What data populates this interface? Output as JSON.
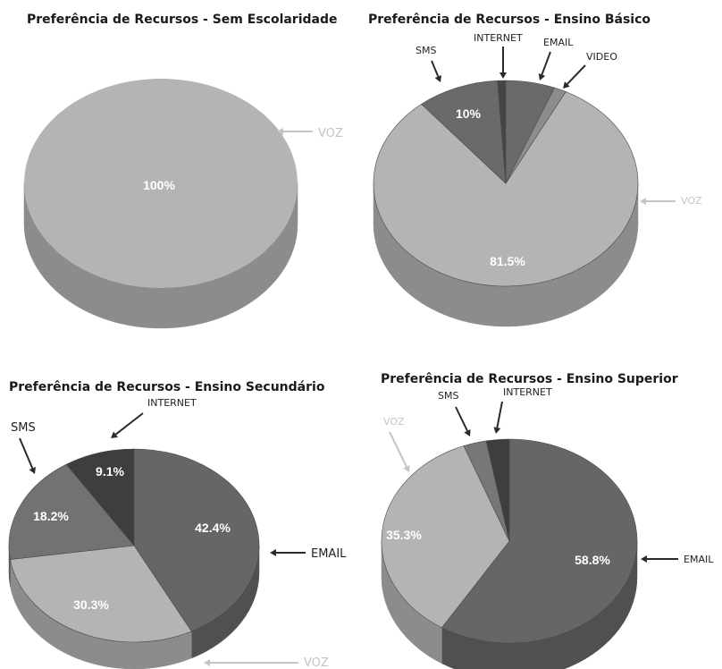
{
  "chart_data": [
    {
      "type": "pie",
      "title": "Preferência de Recursos - Sem Escolaridade",
      "categories": [
        "VOZ"
      ],
      "values": [
        100
      ],
      "value_labels": [
        "100%"
      ],
      "colors": [
        "#b4b4b4"
      ]
    },
    {
      "type": "pie",
      "title": "Preferência de Recursos - Ensino Básico",
      "categories": [
        "VOZ",
        "SMS",
        "INTERNET",
        "EMAIL",
        "VIDEO"
      ],
      "values": [
        81.5,
        10,
        1,
        6,
        1.5
      ],
      "value_labels": [
        "81.5%",
        "10%",
        "",
        "",
        ""
      ],
      "colors": [
        "#b4b4b4",
        "#6a6a6a",
        "#454545",
        "#6a6a6a",
        "#8c8c8c"
      ]
    },
    {
      "type": "pie",
      "title": "Preferência de Recursos - Ensino Secundário",
      "categories": [
        "EMAIL",
        "VOZ",
        "SMS",
        "INTERNET"
      ],
      "values": [
        42.4,
        30.3,
        18.2,
        9.1
      ],
      "value_labels": [
        "42.4%",
        "30.3%",
        "18.2%",
        "9.1%"
      ],
      "colors": [
        "#666666",
        "#b4b4b4",
        "#727272",
        "#3e3e3e"
      ]
    },
    {
      "type": "pie",
      "title": "Preferência de Recursos - Ensino Superior",
      "categories": [
        "EMAIL",
        "VOZ",
        "SMS",
        "INTERNET"
      ],
      "values": [
        58.8,
        35.3,
        2.9,
        2.9
      ],
      "value_labels": [
        "58.8%",
        "35.3%",
        "",
        ""
      ],
      "colors": [
        "#666666",
        "#b4b4b4",
        "#777777",
        "#3e3e3e"
      ]
    }
  ]
}
